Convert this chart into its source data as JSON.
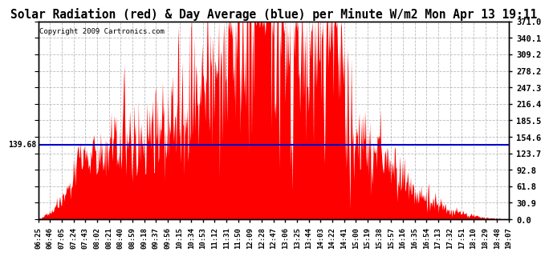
{
  "title": "Solar Radiation (red) & Day Average (blue) per Minute W/m2 Mon Apr 13 19:11",
  "copyright": "Copyright 2009 Cartronics.com",
  "avg_value": 139.68,
  "y_max": 371.0,
  "y_min": 0.0,
  "y_ticks": [
    0.0,
    30.9,
    61.8,
    92.8,
    123.7,
    154.6,
    185.5,
    216.4,
    247.3,
    278.2,
    309.2,
    340.1,
    371.0
  ],
  "fill_color": "#FF0000",
  "line_color": "#0000CC",
  "background_color": "#FFFFFF",
  "grid_color": "#AAAAAA",
  "title_fontsize": 11,
  "x_tick_labels": [
    "06:25",
    "06:46",
    "07:05",
    "07:24",
    "07:43",
    "08:02",
    "08:21",
    "08:40",
    "08:59",
    "09:18",
    "09:37",
    "09:56",
    "10:15",
    "10:34",
    "10:53",
    "11:12",
    "11:31",
    "11:50",
    "12:09",
    "12:28",
    "12:47",
    "13:06",
    "13:25",
    "13:44",
    "14:03",
    "14:22",
    "14:41",
    "15:00",
    "15:19",
    "15:38",
    "15:57",
    "16:16",
    "16:35",
    "16:54",
    "17:13",
    "17:32",
    "17:51",
    "18:10",
    "18:29",
    "18:48",
    "19:07"
  ]
}
